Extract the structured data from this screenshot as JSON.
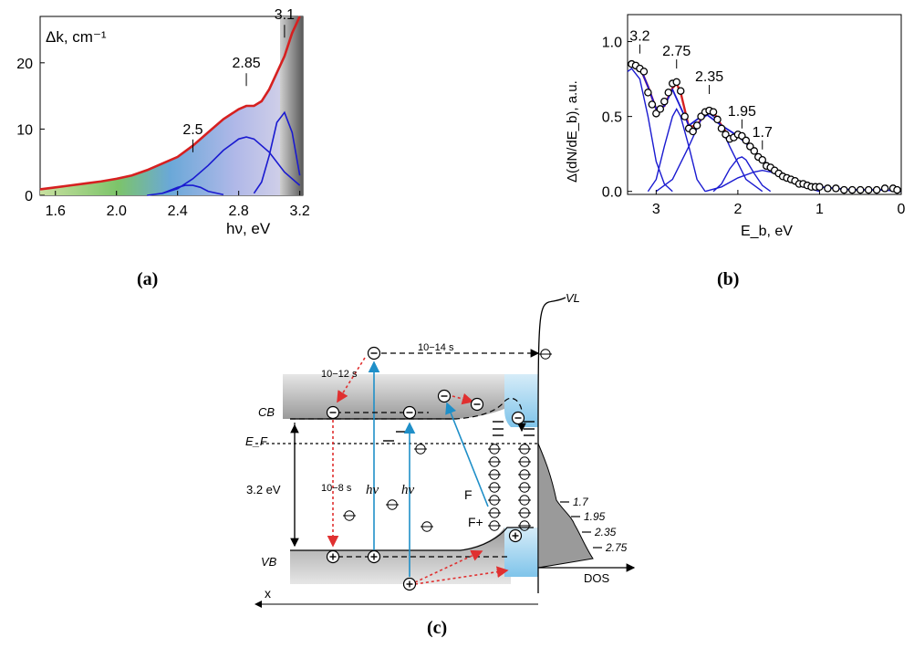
{
  "panels": {
    "a": {
      "caption": "(a)",
      "unit_label": "Δk, cm⁻¹",
      "x_label": "hν, eV"
    },
    "b": {
      "caption": "(b)",
      "y_label": "Δ(dN/dE_b), a.u.",
      "x_label": "E_b, eV"
    },
    "c": {
      "caption": "(c)",
      "labels": {
        "vl": "VL",
        "cb": "CB",
        "ef": "E_F",
        "vb": "VB",
        "x_axis": "x",
        "dos": "DOS",
        "gap": "3.2 eV",
        "f": "F",
        "fplus": "F+",
        "hv": "hν",
        "t12": "10−12 s",
        "t14": "10−14 s",
        "t8": "10−8 s"
      },
      "dos_levels": [
        "1.7",
        "1.95",
        "2.35",
        "2.75"
      ]
    }
  },
  "chart_data": [
    {
      "type": "line",
      "panel": "a",
      "xlabel": "hν, eV",
      "ylabel": "Δk, cm⁻¹",
      "xlim": [
        1.5,
        3.22
      ],
      "ylim": [
        0,
        27
      ],
      "xticks": [
        1.6,
        2.0,
        2.4,
        2.8,
        3.2
      ],
      "xtick_labels": [
        "1.6",
        "2.0",
        "2.4",
        "2.8",
        "3.2"
      ],
      "yticks": [
        0,
        10,
        20
      ],
      "ytick_labels": [
        "0",
        "10",
        "20"
      ],
      "peak_annotations": [
        {
          "label": "2.5",
          "x": 2.5,
          "y": 6.5
        },
        {
          "label": "2.85",
          "x": 2.85,
          "y": 16.5
        },
        {
          "label": "3.1",
          "x": 3.1,
          "y": 23.8
        }
      ],
      "series": [
        {
          "name": "",
          "color": "#d62020",
          "x": [
            1.5,
            1.6,
            1.7,
            1.8,
            1.9,
            2.0,
            2.1,
            2.2,
            2.3,
            2.4,
            2.5,
            2.6,
            2.7,
            2.8,
            2.85,
            2.9,
            2.95,
            3.0,
            3.05,
            3.1,
            3.15,
            3.2
          ],
          "y": [
            0.9,
            1.2,
            1.5,
            1.8,
            2.1,
            2.5,
            3.0,
            3.8,
            4.8,
            5.8,
            7.5,
            9.5,
            11.5,
            13.0,
            13.5,
            13.5,
            14.2,
            16.0,
            18.5,
            21.0,
            24.5,
            27.0
          ]
        },
        {
          "name": "",
          "color": "#1a1ad0",
          "x": [
            2.2,
            2.3,
            2.4,
            2.45,
            2.5,
            2.55,
            2.6,
            2.7
          ],
          "y": [
            0.0,
            0.3,
            1.2,
            1.5,
            1.5,
            1.2,
            0.6,
            0.1
          ]
        },
        {
          "name": "",
          "color": "#1a1ad0",
          "x": [
            2.3,
            2.4,
            2.5,
            2.6,
            2.7,
            2.8,
            2.85,
            2.9,
            3.0,
            3.1,
            3.2
          ],
          "y": [
            0.3,
            1.0,
            2.5,
            4.5,
            6.8,
            8.5,
            8.8,
            8.5,
            6.5,
            3.5,
            1.5
          ]
        },
        {
          "name": "",
          "color": "#1a1ad0",
          "x": [
            2.9,
            2.95,
            3.0,
            3.05,
            3.1,
            3.15,
            3.2
          ],
          "y": [
            0.3,
            2.0,
            6.0,
            11.0,
            12.5,
            9.5,
            3.0
          ]
        }
      ]
    },
    {
      "type": "scatter",
      "panel": "b",
      "xlabel": "E_b, eV",
      "ylabel": "Δ(dN/dE_b), a.u.",
      "xlim": [
        3.35,
        0
      ],
      "ylim": [
        -0.02,
        1.18
      ],
      "xticks": [
        3,
        2,
        1,
        0
      ],
      "xtick_labels": [
        "3",
        "2",
        "1",
        "0"
      ],
      "yticks": [
        0.0,
        0.5,
        1.0
      ],
      "ytick_labels": [
        "0.0",
        "0.5",
        "1.0"
      ],
      "peak_annotations": [
        {
          "label": "3.2",
          "x": 3.2,
          "y": 0.92
        },
        {
          "label": "2.75",
          "x": 2.75,
          "y": 0.82
        },
        {
          "label": "2.35",
          "x": 2.35,
          "y": 0.65
        },
        {
          "label": "1.95",
          "x": 1.95,
          "y": 0.42
        },
        {
          "label": "1.7",
          "x": 1.7,
          "y": 0.28
        }
      ],
      "series": [
        {
          "name": "",
          "color": "#000000",
          "x": [
            3.3,
            3.25,
            3.2,
            3.15,
            3.1,
            3.05,
            3.0,
            2.95,
            2.9,
            2.85,
            2.8,
            2.75,
            2.7,
            2.65,
            2.6,
            2.55,
            2.5,
            2.45,
            2.4,
            2.35,
            2.3,
            2.25,
            2.2,
            2.15,
            2.1,
            2.05,
            2.0,
            1.95,
            1.9,
            1.85,
            1.8,
            1.75,
            1.7,
            1.65,
            1.6,
            1.55,
            1.5,
            1.45,
            1.4,
            1.35,
            1.3,
            1.25,
            1.2,
            1.15,
            1.1,
            1.05,
            1.0,
            0.9,
            0.8,
            0.7,
            0.6,
            0.5,
            0.4,
            0.3,
            0.2,
            0.1,
            0.05
          ],
          "y": [
            0.85,
            0.84,
            0.82,
            0.8,
            0.66,
            0.58,
            0.52,
            0.55,
            0.6,
            0.66,
            0.72,
            0.73,
            0.67,
            0.5,
            0.42,
            0.4,
            0.44,
            0.5,
            0.53,
            0.54,
            0.53,
            0.48,
            0.42,
            0.38,
            0.35,
            0.36,
            0.38,
            0.37,
            0.34,
            0.3,
            0.27,
            0.23,
            0.21,
            0.17,
            0.16,
            0.14,
            0.12,
            0.1,
            0.09,
            0.08,
            0.07,
            0.05,
            0.05,
            0.04,
            0.03,
            0.03,
            0.03,
            0.02,
            0.02,
            0.01,
            0.01,
            0.01,
            0.01,
            0.01,
            0.02,
            0.02,
            0.01
          ]
        },
        {
          "name": "",
          "color": "#d62020",
          "x": [
            3.3,
            3.2,
            3.1,
            3.0,
            2.9,
            2.8,
            2.75,
            2.7,
            2.6,
            2.5,
            2.4,
            2.3,
            2.2,
            2.1,
            2.0,
            1.9,
            1.8,
            1.7,
            1.6
          ],
          "y": [
            0.86,
            0.83,
            0.7,
            0.55,
            0.57,
            0.69,
            0.72,
            0.66,
            0.43,
            0.44,
            0.52,
            0.53,
            0.44,
            0.36,
            0.37,
            0.34,
            0.27,
            0.21,
            0.16
          ]
        },
        {
          "name": "",
          "color": "#1a1ad0",
          "x": [
            3.3,
            3.2,
            3.1,
            3.0,
            2.9,
            2.8,
            2.6,
            2.4,
            2.2,
            2.0,
            1.8,
            1.6,
            1.4,
            1.2,
            1.0,
            0.8,
            0.6,
            0.4,
            0.2,
            0.0
          ],
          "y": [
            0.86,
            0.83,
            0.7,
            0.55,
            0.57,
            0.68,
            0.44,
            0.52,
            0.44,
            0.37,
            0.27,
            0.16,
            0.09,
            0.05,
            0.03,
            0.02,
            0.01,
            0.01,
            0.01,
            0.0
          ]
        },
        {
          "name": "",
          "color": "#1a1ad0",
          "x": [
            3.35,
            3.3,
            3.2,
            3.1,
            3.0,
            2.9,
            2.8
          ],
          "y": [
            0.8,
            0.82,
            0.75,
            0.5,
            0.2,
            0.05,
            0.0
          ]
        },
        {
          "name": "",
          "color": "#1a1ad0",
          "x": [
            3.1,
            3.0,
            2.9,
            2.8,
            2.75,
            2.7,
            2.6,
            2.5,
            2.4
          ],
          "y": [
            0.0,
            0.08,
            0.3,
            0.5,
            0.55,
            0.5,
            0.3,
            0.08,
            0.0
          ]
        },
        {
          "name": "",
          "color": "#1a1ad0",
          "x": [
            3.0,
            2.8,
            2.6,
            2.45,
            2.35,
            2.25,
            2.1,
            1.9,
            1.7
          ],
          "y": [
            0.0,
            0.08,
            0.3,
            0.48,
            0.52,
            0.48,
            0.3,
            0.08,
            0.0
          ]
        },
        {
          "name": "",
          "color": "#1a1ad0",
          "x": [
            2.3,
            2.2,
            2.1,
            2.0,
            1.95,
            1.9,
            1.8,
            1.7,
            1.6
          ],
          "y": [
            0.0,
            0.05,
            0.15,
            0.22,
            0.23,
            0.21,
            0.12,
            0.04,
            0.0
          ]
        },
        {
          "name": "",
          "color": "#1a1ad0",
          "x": [
            2.4,
            2.2,
            2.0,
            1.8,
            1.7,
            1.6,
            1.4,
            1.2,
            1.0
          ],
          "y": [
            0.0,
            0.03,
            0.09,
            0.13,
            0.14,
            0.13,
            0.08,
            0.03,
            0.0
          ]
        }
      ]
    }
  ]
}
